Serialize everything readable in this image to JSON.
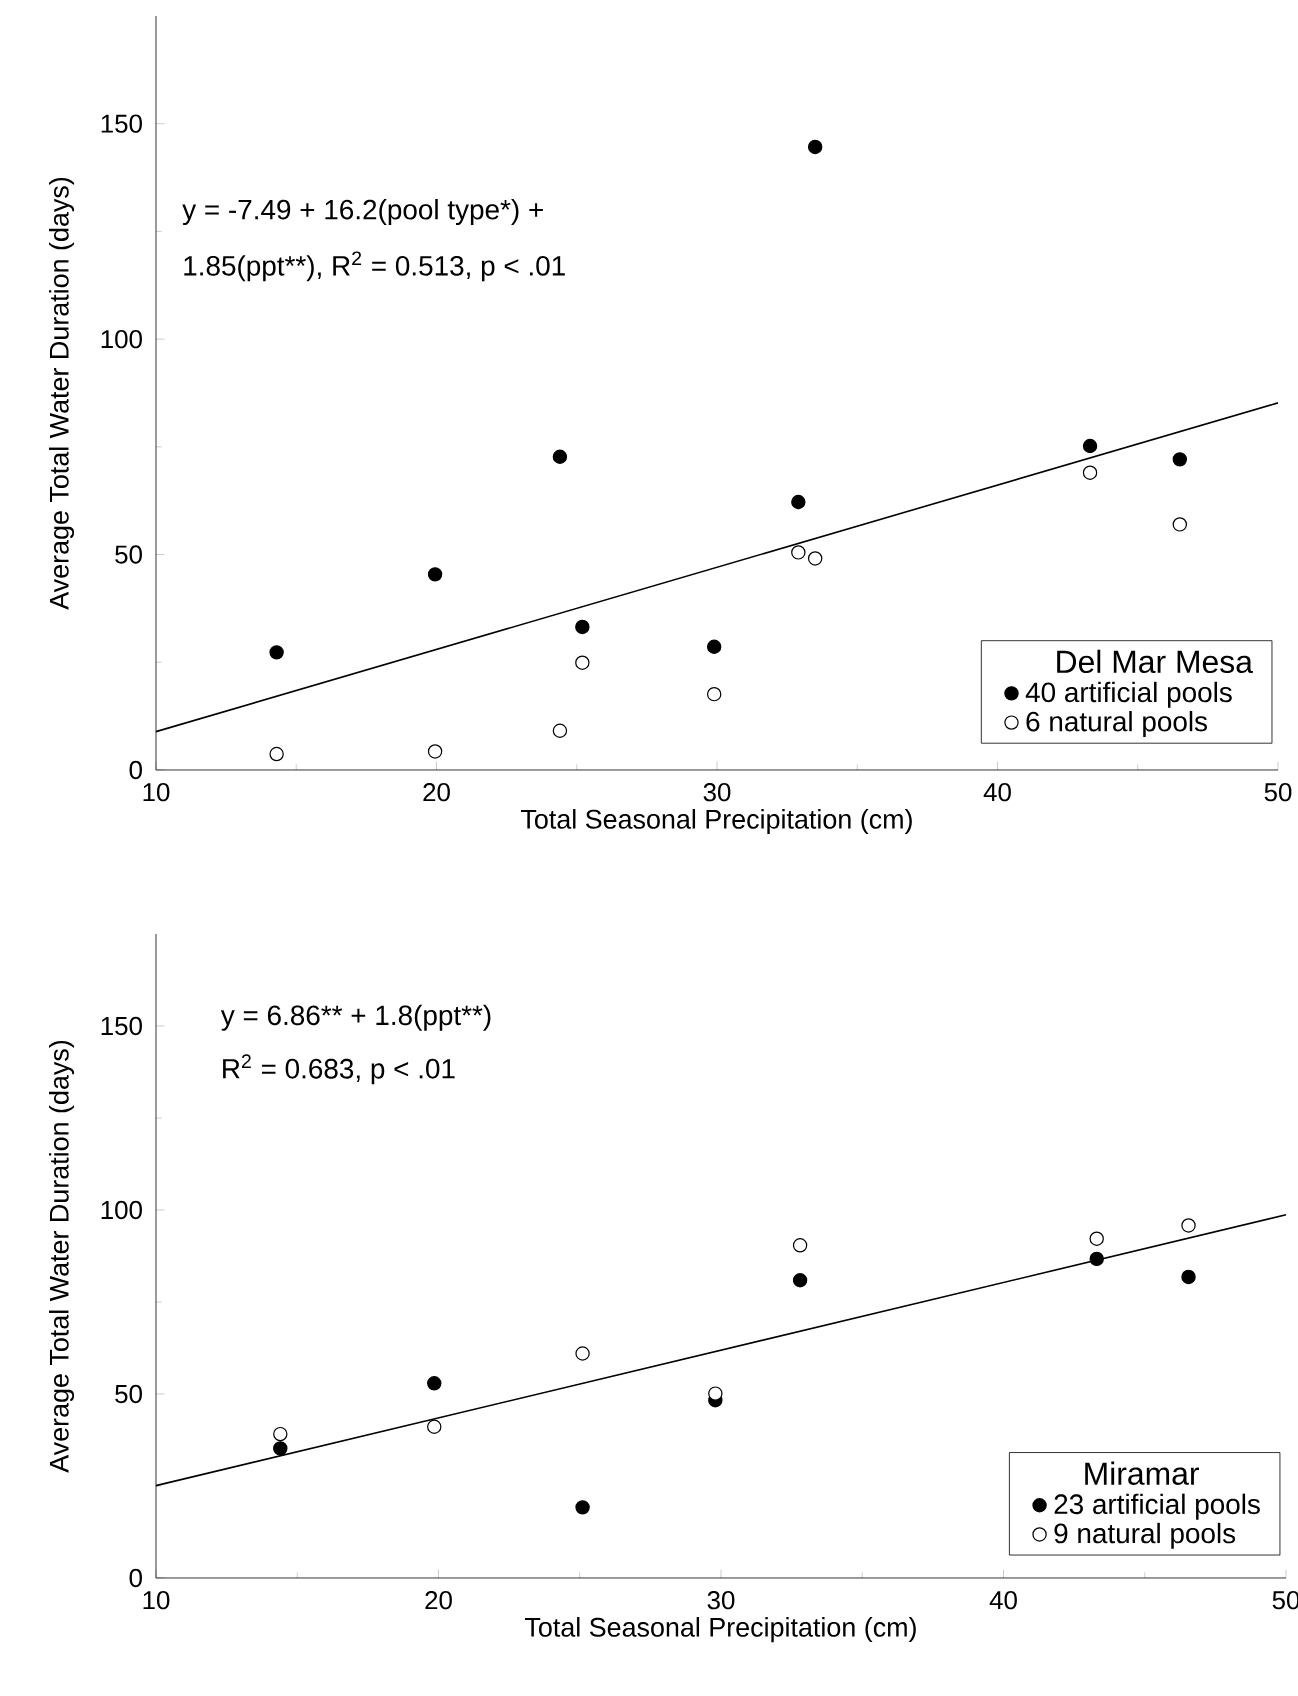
{
  "chart_data": [
    {
      "type": "scatter",
      "xlabel": "Total Seasonal Precipitation (cm)",
      "ylabel": "Average Total Water Duration (days)",
      "legend_title": "Del Mar Mesa",
      "legend": "bottom right",
      "marker": "circle",
      "xlim": [
        10,
        50
      ],
      "xticks": [
        10,
        20,
        30,
        40,
        50
      ],
      "ylim": [
        0,
        175
      ],
      "yticks": [
        0,
        50,
        100,
        150
      ],
      "annotations": [
        "y = -7.49 + 16.2(pool type*) +",
        "1.85(ppt**), R$^{2}$ = 0.513, p < .01"
      ],
      "series": [
        {
          "name": "40 artificial pools",
          "color": "#000000",
          "x": [
            14.3,
            19.95,
            24.4,
            25.2,
            29.9,
            32.9,
            33.5,
            43.3,
            46.5
          ],
          "values": [
            27.3,
            45.4,
            72.7,
            33.2,
            28.6,
            62.2,
            144.6,
            75.2,
            72.1
          ]
        },
        {
          "name": "6 natural pools",
          "color": "#ffffff",
          "x": [
            14.3,
            19.95,
            24.4,
            25.2,
            29.9,
            32.9,
            33.5,
            43.3,
            46.5
          ],
          "values": [
            3.7,
            4.3,
            9.1,
            24.9,
            17.6,
            50.5,
            49.1,
            69.0,
            57.0
          ]
        },
        {
          "type": "line",
          "marker": "none",
          "color": "#000000",
          "x": [
            10,
            50
          ],
          "values": [
            8.9,
            85.2
          ]
        }
      ]
    },
    {
      "type": "scatter",
      "xlabel": "Total Seasonal Precipitation (cm)",
      "ylabel": "Average Total Water Duration (days)",
      "legend_title": "Miramar",
      "legend": "bottom right",
      "marker": "circle",
      "xlim": [
        10,
        50
      ],
      "xticks": [
        10,
        20,
        30,
        40,
        50
      ],
      "ylim": [
        0,
        175
      ],
      "yticks": [
        0,
        50,
        100,
        150
      ],
      "annotations": [
        "y = 6.86** + 1.8(ppt**)",
        "R$^{2}$ = 0.683, p < .01"
      ],
      "series": [
        {
          "name": "23 artificial pools",
          "color": "#000000",
          "x": [
            14.4,
            19.85,
            25.1,
            29.8,
            32.8,
            43.3,
            46.55
          ],
          "values": [
            35.2,
            52.9,
            19.2,
            48.3,
            80.9,
            86.7,
            81.8
          ]
        },
        {
          "name": "9 natural pools",
          "color": "#ffffff",
          "x": [
            14.4,
            19.85,
            25.1,
            29.8,
            32.8,
            43.3,
            46.55
          ],
          "values": [
            39.1,
            41.1,
            61.0,
            50.1,
            90.4,
            92.2,
            95.8
          ]
        },
        {
          "type": "line",
          "marker": "none",
          "color": "#000000",
          "x": [
            10,
            50
          ],
          "values": [
            25.1,
            98.7
          ]
        }
      ]
    }
  ]
}
